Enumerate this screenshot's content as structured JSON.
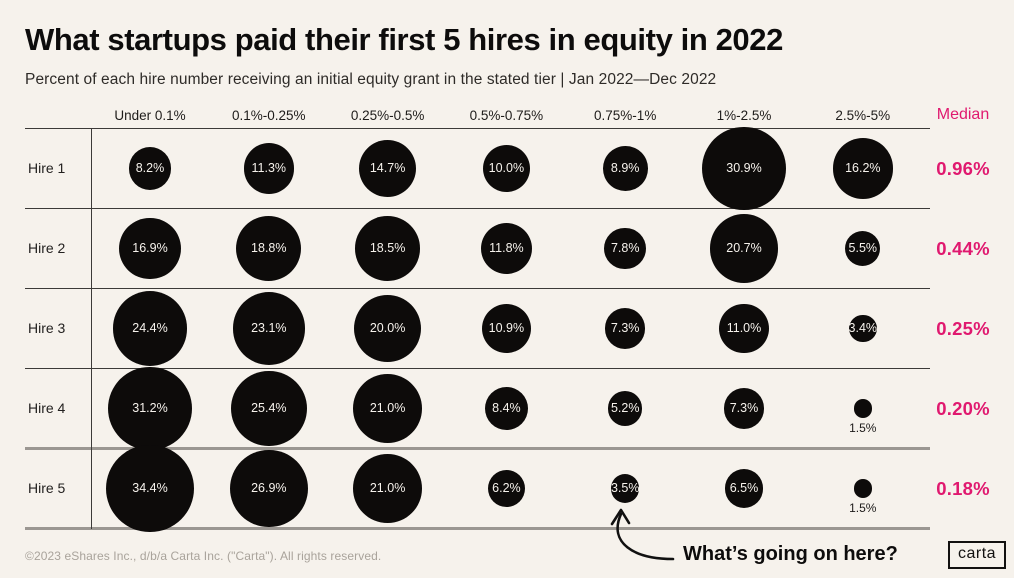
{
  "title": "What startups paid their first 5 hires in equity in 2022",
  "subtitle": "Percent of each hire number receiving an initial equity grant in the stated tier | Jan 2022—Dec 2022",
  "annotation": {
    "text": "What’s going on here?"
  },
  "footer": {
    "copyright": "©2023 eShares Inc., d/b/a Carta Inc. (\"Carta\"). All rights reserved.",
    "logo_label": "carta"
  },
  "colors": {
    "background": "#f6f2ec",
    "bubble": "#0d0b0a",
    "bubble_text": "#f6f2ec",
    "accent_pink": "#e0196f",
    "grid_dark": "#3c3a38",
    "grid_light": "#9b9792",
    "title_text": "#0d0c0c",
    "footer_text": "#a9a39b"
  },
  "chart_data": {
    "type": "bubble-matrix",
    "title": "What startups paid their first 5 hires in equity in 2022",
    "subtitle": "Percent of each hire number receiving an initial equity grant in the stated tier | Jan 2022—Dec 2022",
    "categories": [
      "Under 0.1%",
      "0.1%-0.25%",
      "0.25%-0.5%",
      "0.5%-0.75%",
      "0.75%-1%",
      "1%-2.5%",
      "2.5%-5%"
    ],
    "median_header": "Median",
    "rows": [
      {
        "label": "Hire 1",
        "values": [
          8.2,
          11.3,
          14.7,
          10.0,
          8.9,
          30.9,
          16.2
        ],
        "median": "0.96%"
      },
      {
        "label": "Hire 2",
        "values": [
          16.9,
          18.8,
          18.5,
          11.8,
          7.8,
          20.7,
          5.5
        ],
        "median": "0.44%"
      },
      {
        "label": "Hire 3",
        "values": [
          24.4,
          23.1,
          20.0,
          10.9,
          7.3,
          11.0,
          3.4
        ],
        "median": "0.25%"
      },
      {
        "label": "Hire 4",
        "values": [
          31.2,
          25.4,
          21.0,
          8.4,
          5.2,
          7.3,
          1.5
        ],
        "median": "0.20%"
      },
      {
        "label": "Hire 5",
        "values": [
          34.4,
          26.9,
          21.0,
          6.2,
          3.5,
          6.5,
          1.5
        ],
        "median": "0.18%"
      }
    ],
    "value_suffix": "%",
    "value_decimals": 1,
    "bubble_scale": "diameter = 15 * sqrt(value)",
    "label_outside_threshold": 2.0,
    "annotation_target": {
      "row": "Hire 5",
      "category": "0.75%-1%",
      "value": 3.5
    },
    "legend": "none",
    "grid": "row separators only"
  }
}
